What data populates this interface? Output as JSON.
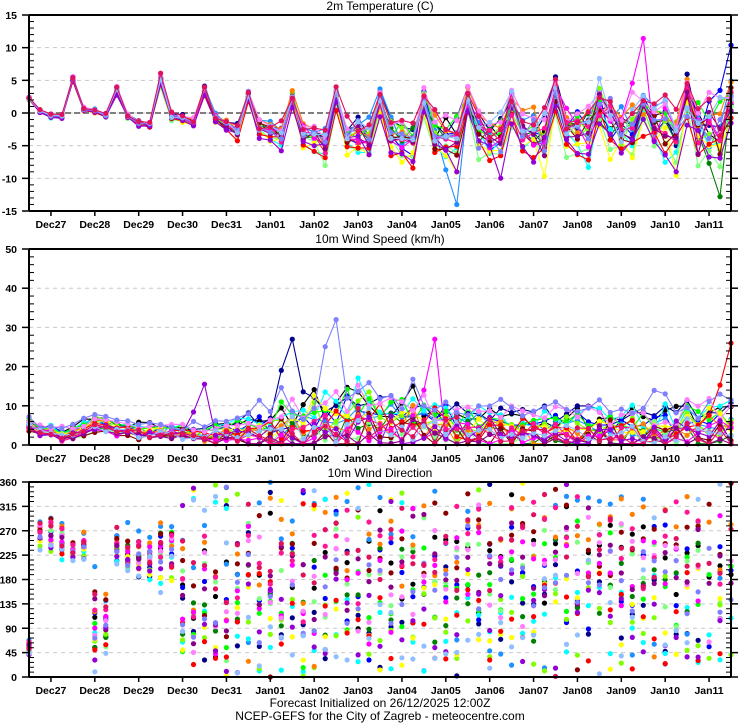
{
  "footer": {
    "line1": "Forecast Initialized on 26/12/2025 12:00Z",
    "line2": "NCEP-GEFS for the City of Zagreb - meteocentre.com"
  },
  "chart_data": [
    {
      "type": "line",
      "title": "2m Temperature (C)",
      "xlabel": "",
      "ylabel": "",
      "x_start": "2025-12-26T12:00Z",
      "x_step_hours": 6,
      "n_points": 65,
      "xticks": [
        "Dec27",
        "Dec28",
        "Dec29",
        "Dec30",
        "Dec31",
        "Jan01",
        "Jan02",
        "Jan03",
        "Jan04",
        "Jan05",
        "Jan06",
        "Jan07",
        "Jan08",
        "Jan09",
        "Jan10",
        "Jan11"
      ],
      "ylim": [
        -15,
        15
      ],
      "yticks": [
        -15,
        -10,
        -5,
        0,
        5,
        10,
        15
      ],
      "grid": "dashed horizontal",
      "zero_line": true,
      "series_model": {
        "base": [
          2.2,
          0.3,
          -0.4,
          -0.5,
          5.2,
          0.6,
          0.3,
          -0.4,
          3.5,
          -0.5,
          -1.5,
          -1.8,
          5,
          -0.5,
          -0.8,
          -1.5,
          3.5,
          -0.8,
          -1.8,
          -2.8,
          2.8,
          -2.2,
          -2.6,
          -3.4,
          2.2,
          -3.2,
          -3.5,
          -4.5,
          2.2,
          -3.2,
          -3.6,
          -4,
          2,
          -3.4,
          -3.8,
          -4.3,
          1.8,
          -3.3,
          -3.7,
          -4.3,
          1.6,
          -3.2,
          -3.6,
          -3.9,
          1.5,
          -2.8,
          -3.2,
          -3.5,
          2,
          -1.8,
          -2.4,
          -2.8,
          1.5,
          -1.4,
          -2,
          -2.4,
          1.6,
          -2,
          -2.5,
          -3,
          2.5,
          -1.8,
          -2.3,
          -2.8,
          1.5
        ],
        "spread": [
          0.2,
          0.2,
          0.2,
          0.2,
          0.3,
          0.2,
          0.2,
          0.2,
          0.4,
          0.3,
          0.3,
          0.3,
          0.6,
          0.4,
          0.4,
          0.5,
          0.6,
          0.5,
          0.6,
          0.8,
          0.7,
          0.9,
          1,
          1.2,
          0.9,
          1.3,
          1.4,
          1.6,
          1.2,
          1.7,
          1.8,
          2,
          1.4,
          2,
          2.1,
          2.3,
          1.6,
          2.2,
          2.4,
          2.5,
          1.7,
          2.3,
          2.5,
          2.7,
          1.9,
          2.4,
          2.6,
          2.8,
          2.2,
          2.6,
          2.8,
          3,
          2.4,
          2.8,
          3,
          3.2,
          2.6,
          3,
          3.2,
          3.4,
          2.8,
          3.2,
          3.4,
          3.6,
          3
        ]
      },
      "highlights": [
        {
          "member": "magenta",
          "peak_value": 11.4,
          "time": "Jan09 12Z"
        },
        {
          "member": "dark-green",
          "min_value": -12.8,
          "time": "Jan11 06Z"
        },
        {
          "member": "dodgerblue",
          "min_value": -14,
          "time": "Jan05 06Z"
        },
        {
          "member": "blue",
          "end_value": 10.4,
          "time": "Jan11 12Z"
        }
      ]
    },
    {
      "type": "line",
      "title": "10m Wind Speed (km/h)",
      "xlabel": "",
      "ylabel": "",
      "x_start": "2025-12-26T12:00Z",
      "x_step_hours": 6,
      "n_points": 65,
      "xticks": [
        "Dec27",
        "Dec28",
        "Dec29",
        "Dec30",
        "Dec31",
        "Jan01",
        "Jan02",
        "Jan03",
        "Jan04",
        "Jan05",
        "Jan06",
        "Jan07",
        "Jan08",
        "Jan09",
        "Jan10",
        "Jan11"
      ],
      "ylim": [
        0,
        50
      ],
      "yticks": [
        0,
        10,
        20,
        30,
        40,
        50
      ],
      "grid": "dashed horizontal",
      "series_model": {
        "base": [
          5,
          3.5,
          3.5,
          2.5,
          3,
          4,
          5.5,
          5,
          4,
          4,
          3.5,
          3.5,
          3.5,
          3.5,
          3,
          2.5,
          2.5,
          3,
          3.5,
          3.5,
          3.5,
          3.5,
          4,
          4.5,
          4,
          4,
          5.5,
          6,
          6,
          6,
          7,
          7,
          6,
          5.5,
          6,
          6,
          5.5,
          5,
          5,
          5,
          4.5,
          4,
          4.5,
          4.5,
          4,
          4,
          4,
          4,
          4,
          4,
          4,
          4,
          4,
          4,
          4,
          4,
          4,
          4,
          4,
          4.5,
          4.5,
          4.5,
          4.5,
          5,
          5.5
        ],
        "spread": [
          1,
          1,
          1,
          1,
          1,
          1.2,
          1.5,
          1.5,
          1.3,
          1.2,
          1.2,
          1.2,
          1.2,
          1.2,
          1.2,
          1.3,
          1.5,
          2,
          2,
          2.2,
          2.5,
          3,
          3.5,
          4,
          4.5,
          5,
          5,
          5,
          5,
          5,
          5,
          5,
          4.5,
          4.5,
          4.5,
          4.5,
          4,
          4,
          4,
          4,
          3.5,
          3.5,
          3.5,
          3.5,
          3.5,
          3.5,
          3.5,
          3.5,
          3.5,
          3.5,
          3.5,
          3.5,
          3.5,
          3.5,
          3.5,
          3.5,
          3.5,
          3.5,
          3.5,
          4,
          4,
          4,
          4,
          4.5,
          5
        ]
      },
      "highlights": [
        {
          "member": "lightslateblue",
          "peak_value": 32,
          "time": "Jan02 12Z"
        },
        {
          "member": "navy",
          "peak_value": 27,
          "time": "Jan01 12Z"
        },
        {
          "member": "magenta",
          "peak_value": 27,
          "time": "Jan04 18Z"
        },
        {
          "member": "red",
          "end_value": 26,
          "time": "Jan11 12Z"
        },
        {
          "member": "darkviolet",
          "peak_value": 15.5,
          "time": "Dec30 12Z"
        }
      ]
    },
    {
      "type": "scatter",
      "title": "10m Wind Direction",
      "xlabel": "",
      "ylabel": "",
      "x_start": "2025-12-26T12:00Z",
      "x_step_hours": 6,
      "n_points": 65,
      "xticks": [
        "Dec27",
        "Dec28",
        "Dec29",
        "Dec30",
        "Dec31",
        "Jan01",
        "Jan02",
        "Jan03",
        "Jan04",
        "Jan05",
        "Jan06",
        "Jan07",
        "Jan08",
        "Jan09",
        "Jan10",
        "Jan11"
      ],
      "ylim": [
        0,
        360
      ],
      "yticks": [
        0,
        45,
        90,
        135,
        180,
        225,
        270,
        315,
        360
      ],
      "grid": "dashed horizontal",
      "series_model": {
        "base": [
          55,
          270,
          265,
          250,
          235,
          245,
          100,
          100,
          240,
          235,
          225,
          225,
          240,
          230,
          150,
          90,
          140,
          100,
          90,
          160,
          240,
          180,
          170,
          150,
          200,
          100,
          160,
          200,
          230,
          180,
          150,
          160,
          200,
          170,
          180,
          200,
          220,
          200,
          180,
          180,
          220,
          190,
          190,
          200,
          230,
          200,
          200,
          200,
          230,
          210,
          210,
          200,
          220,
          210,
          200,
          200,
          220,
          210,
          200,
          190,
          220,
          200,
          180,
          180,
          200
        ],
        "spread": [
          10,
          20,
          20,
          20,
          10,
          15,
          50,
          40,
          20,
          25,
          25,
          25,
          40,
          40,
          90,
          90,
          100,
          100,
          100,
          100,
          90,
          100,
          100,
          100,
          100,
          100,
          110,
          110,
          100,
          110,
          110,
          110,
          100,
          110,
          110,
          110,
          100,
          110,
          110,
          110,
          100,
          110,
          110,
          110,
          100,
          110,
          110,
          110,
          100,
          110,
          110,
          110,
          100,
          110,
          110,
          110,
          100,
          110,
          110,
          110,
          100,
          110,
          110,
          110,
          110
        ]
      }
    }
  ],
  "members": [
    {
      "name": "black",
      "color": "#000000"
    },
    {
      "name": "navy",
      "color": "#00008b"
    },
    {
      "name": "blue",
      "color": "#0000ff"
    },
    {
      "name": "dodgerblue",
      "color": "#1e90ff"
    },
    {
      "name": "cyan",
      "color": "#00ffff"
    },
    {
      "name": "darkgreen",
      "color": "#008000"
    },
    {
      "name": "lime",
      "color": "#00ff00"
    },
    {
      "name": "lightgreen",
      "color": "#7fff7f"
    },
    {
      "name": "chartreuse",
      "color": "#7fff00"
    },
    {
      "name": "yellow",
      "color": "#ffff00"
    },
    {
      "name": "orange",
      "color": "#ff7f00"
    },
    {
      "name": "red",
      "color": "#ff0000"
    },
    {
      "name": "maroon",
      "color": "#8b0000"
    },
    {
      "name": "magenta",
      "color": "#ff00ff"
    },
    {
      "name": "violet",
      "color": "#ff7fff"
    },
    {
      "name": "deeppink",
      "color": "#ff1493"
    },
    {
      "name": "purple",
      "color": "#8b008b"
    },
    {
      "name": "darkviolet",
      "color": "#9400d3"
    },
    {
      "name": "slateblue",
      "color": "#7f7fff"
    },
    {
      "name": "skyblue",
      "color": "#8fbfff"
    },
    {
      "name": "crimson",
      "color": "#e0115f"
    }
  ]
}
